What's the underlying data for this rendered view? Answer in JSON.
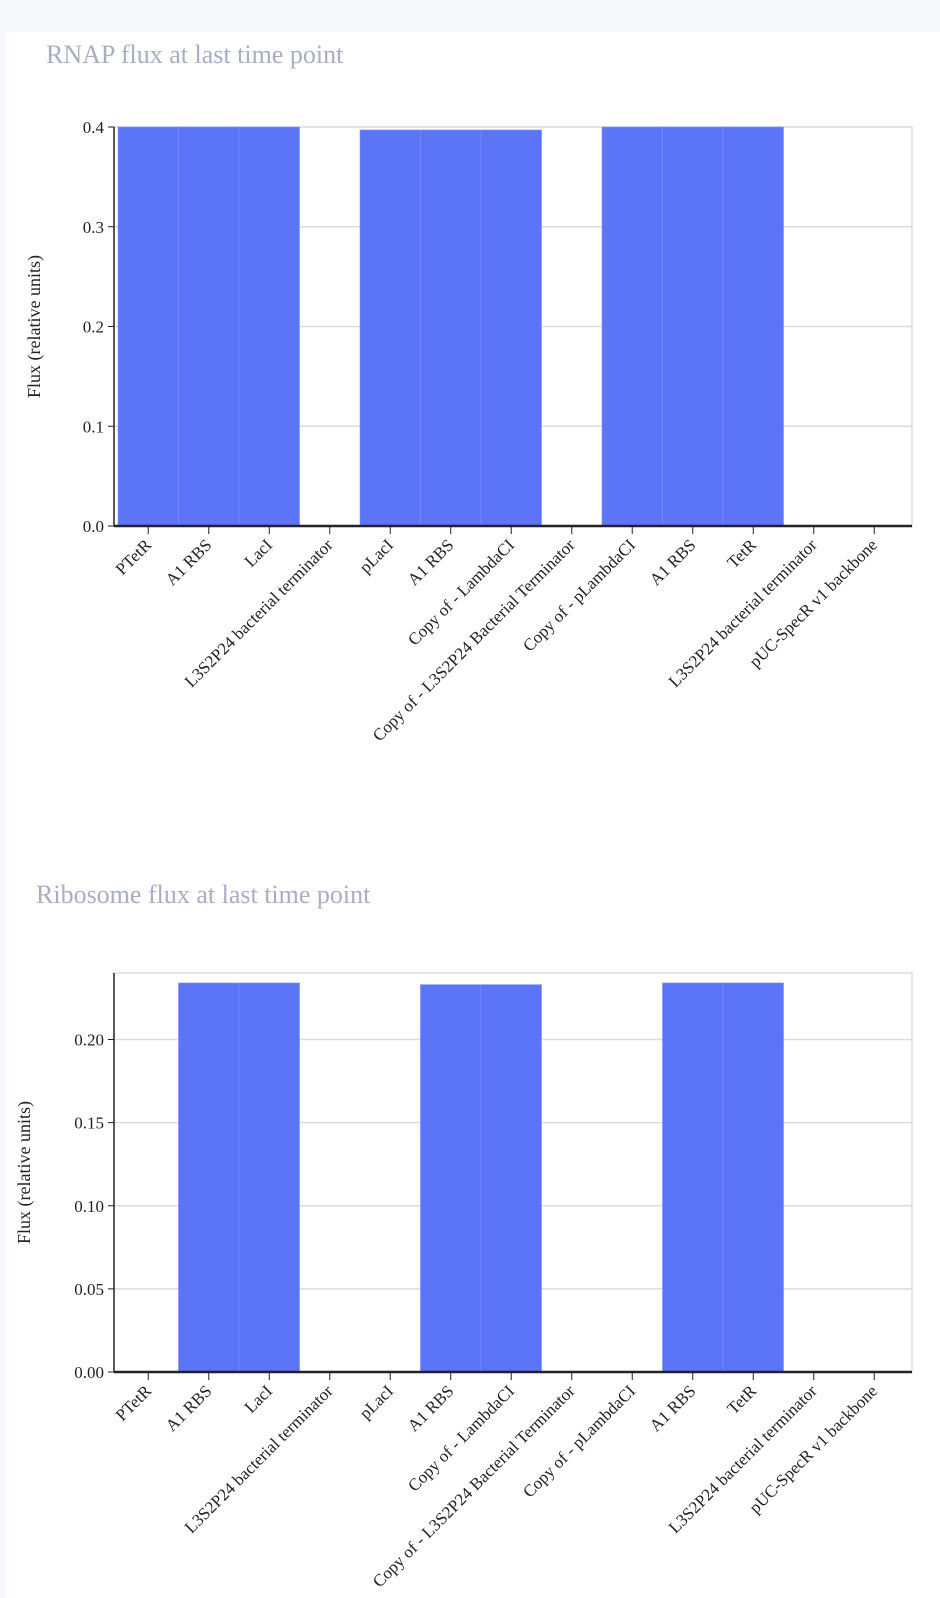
{
  "colors": {
    "bar": "#5c74f7",
    "grid": "#dcdcdc",
    "axis": "#222222",
    "title": "#a9adc4"
  },
  "chart_data": [
    {
      "type": "bar",
      "title": "RNAP flux at last time point",
      "ylabel": "Flux (relative units)",
      "xlabel": "",
      "ylim": [
        0,
        0.4
      ],
      "yticks": [
        0.0,
        0.1,
        0.2,
        0.3,
        0.4
      ],
      "ytick_labels": [
        "0.0",
        "0.1",
        "0.2",
        "0.3",
        "0.4"
      ],
      "grid": true,
      "categories": [
        "PTetR",
        "A1 RBS",
        "LacI",
        "L3S2P24 bacterial terminator",
        "pLacI",
        "A1 RBS",
        "Copy of - LambdaCI",
        "Copy of - L3S2P24 Bacterial Terminator",
        "Copy of - pLambdaCI",
        "A1 RBS",
        "TetR",
        "L3S2P24 bacterial terminator",
        "pUC-SpecR v1 backbone"
      ],
      "values": [
        0.4,
        0.4,
        0.4,
        0,
        0.397,
        0.397,
        0.397,
        0,
        0.4,
        0.4,
        0.4,
        0,
        0
      ]
    },
    {
      "type": "bar",
      "title": "Ribosome flux at last time point",
      "ylabel": "Flux (relative units)",
      "xlabel": "",
      "ylim": [
        0,
        0.24
      ],
      "yticks": [
        0.0,
        0.05,
        0.1,
        0.15,
        0.2
      ],
      "ytick_labels": [
        "0.00",
        "0.05",
        "0.10",
        "0.15",
        "0.20"
      ],
      "grid": true,
      "categories": [
        "PTetR",
        "A1 RBS",
        "LacI",
        "L3S2P24 bacterial terminator",
        "pLacI",
        "A1 RBS",
        "Copy of - LambdaCI",
        "Copy of - L3S2P24 Bacterial Terminator",
        "Copy of - pLambdaCI",
        "A1 RBS",
        "TetR",
        "L3S2P24 bacterial terminator",
        "pUC-SpecR v1 backbone"
      ],
      "values": [
        0,
        0.234,
        0.234,
        0,
        0,
        0.233,
        0.233,
        0,
        0,
        0.234,
        0.234,
        0,
        0
      ]
    }
  ]
}
